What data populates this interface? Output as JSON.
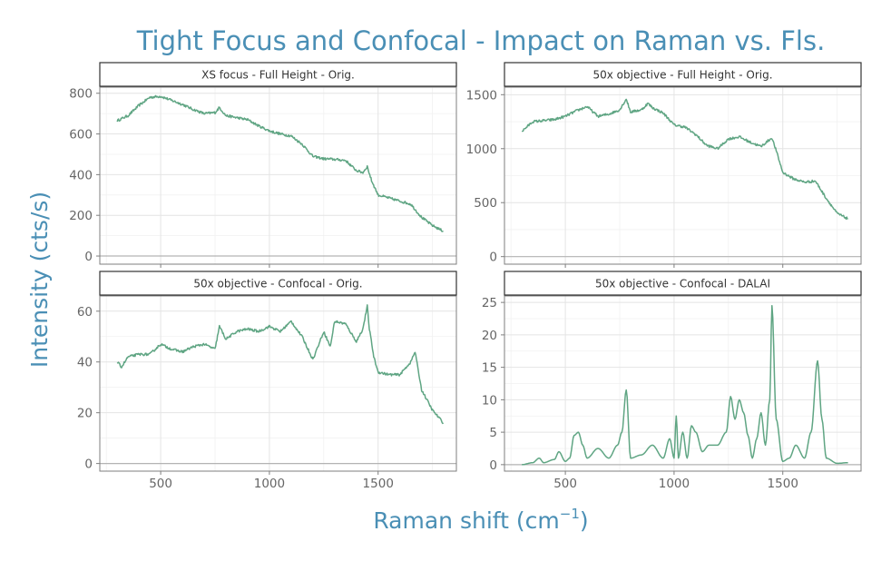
{
  "title": "Tight Focus and Confocal - Impact on Raman vs. Fls.",
  "xlabel": "Raman shift",
  "xlabel_unit": "cm",
  "xlabel_unit_sup": "−1",
  "ylabel": "Intensity (cts/s)",
  "colors": {
    "line": "#5fa583",
    "title": "#4a8fb5"
  },
  "chart_data": [
    {
      "type": "line",
      "title": "XS focus - Full Height - Orig.",
      "xlim": [
        220,
        1860
      ],
      "ylim": [
        -40,
        830
      ],
      "xticks": [
        500,
        1000,
        1500
      ],
      "yticks": [
        0,
        200,
        400,
        600,
        800
      ],
      "x": [
        300,
        350,
        400,
        450,
        500,
        550,
        600,
        650,
        700,
        750,
        770,
        800,
        850,
        900,
        950,
        1000,
        1050,
        1100,
        1150,
        1200,
        1250,
        1300,
        1350,
        1400,
        1430,
        1450,
        1470,
        1500,
        1550,
        1600,
        1650,
        1700,
        1750,
        1800
      ],
      "y": [
        665,
        690,
        740,
        780,
        785,
        765,
        745,
        720,
        700,
        705,
        730,
        690,
        680,
        670,
        640,
        615,
        600,
        590,
        550,
        490,
        478,
        475,
        470,
        420,
        410,
        440,
        370,
        300,
        285,
        270,
        255,
        190,
        150,
        122
      ]
    },
    {
      "type": "line",
      "title": "50x objective - Full Height - Orig.",
      "xlim": [
        220,
        1860
      ],
      "ylim": [
        -70,
        1570
      ],
      "xticks": [
        500,
        1000,
        1500
      ],
      "yticks": [
        0,
        500,
        1000,
        1500
      ],
      "x": [
        300,
        350,
        400,
        450,
        500,
        550,
        600,
        650,
        700,
        750,
        780,
        800,
        850,
        880,
        900,
        950,
        1000,
        1050,
        1100,
        1150,
        1200,
        1250,
        1300,
        1350,
        1400,
        1450,
        1470,
        1500,
        1550,
        1600,
        1650,
        1700,
        1750,
        1800
      ],
      "y": [
        1160,
        1250,
        1260,
        1270,
        1300,
        1350,
        1390,
        1300,
        1320,
        1360,
        1460,
        1340,
        1360,
        1420,
        1380,
        1330,
        1220,
        1200,
        1130,
        1030,
        1000,
        1090,
        1110,
        1060,
        1020,
        1100,
        980,
        780,
        720,
        690,
        700,
        540,
        400,
        350
      ]
    },
    {
      "type": "line",
      "title": "50x objective - Confocal - Orig.",
      "xlim": [
        220,
        1860
      ],
      "ylim": [
        -3,
        66
      ],
      "xticks": [
        500,
        1000,
        1500
      ],
      "yticks": [
        0,
        20,
        40,
        60
      ],
      "x": [
        300,
        320,
        350,
        400,
        450,
        500,
        550,
        600,
        650,
        700,
        750,
        770,
        800,
        850,
        900,
        950,
        1000,
        1050,
        1100,
        1150,
        1200,
        1250,
        1280,
        1300,
        1350,
        1400,
        1430,
        1450,
        1460,
        1480,
        1500,
        1550,
        1600,
        1650,
        1670,
        1700,
        1750,
        1800
      ],
      "y": [
        40,
        38,
        42,
        43,
        43,
        47,
        45,
        44,
        46,
        47,
        45,
        54,
        49,
        52,
        53,
        52,
        54,
        52,
        56,
        50,
        41,
        52,
        46,
        56,
        55,
        48,
        53,
        62,
        53,
        42,
        36,
        35,
        35,
        40,
        44,
        29,
        21,
        16
      ]
    },
    {
      "type": "line",
      "title": "50x objective - Confocal - DALAI",
      "xlim": [
        220,
        1860
      ],
      "ylim": [
        -1,
        26
      ],
      "xticks": [
        500,
        1000,
        1500
      ],
      "yticks": [
        0,
        5,
        10,
        15,
        20,
        25
      ],
      "x": [
        300,
        350,
        380,
        400,
        450,
        470,
        500,
        520,
        540,
        560,
        580,
        600,
        650,
        700,
        740,
        760,
        780,
        800,
        850,
        900,
        950,
        980,
        1000,
        1010,
        1020,
        1040,
        1060,
        1080,
        1100,
        1130,
        1160,
        1200,
        1240,
        1260,
        1280,
        1300,
        1320,
        1340,
        1360,
        1380,
        1400,
        1420,
        1440,
        1450,
        1470,
        1500,
        1530,
        1560,
        1600,
        1630,
        1660,
        1680,
        1700,
        1750,
        1800
      ],
      "y": [
        0,
        0.3,
        1,
        0.3,
        0.8,
        2,
        0.5,
        1,
        4.5,
        5,
        3,
        1,
        2.5,
        1,
        3,
        5,
        11.5,
        1,
        1.5,
        3,
        1,
        4,
        1,
        7.5,
        1,
        5,
        1,
        6,
        5,
        2,
        3,
        3,
        5,
        10.5,
        7,
        10,
        8,
        4.5,
        1,
        4,
        8,
        3,
        10,
        24.5,
        7,
        0.5,
        1,
        3,
        1,
        5,
        16,
        7,
        1,
        0.2,
        0.3
      ]
    }
  ]
}
